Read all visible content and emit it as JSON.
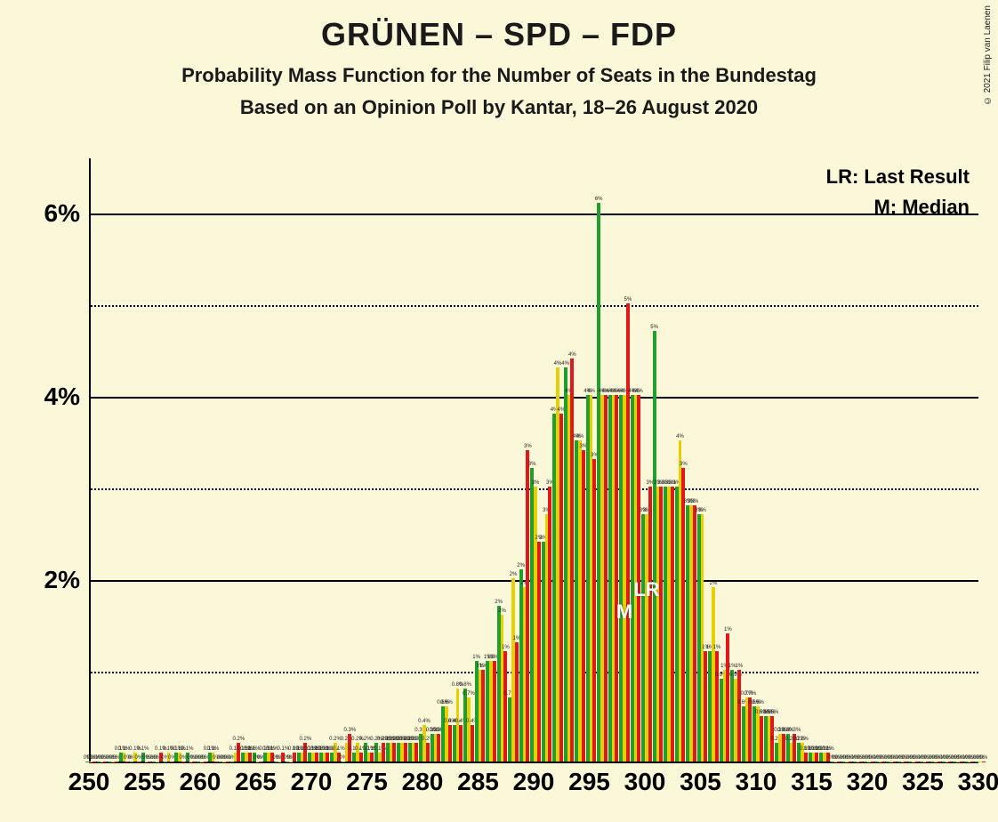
{
  "title": "GRÜNEN – SPD – FDP",
  "subtitle": "Probability Mass Function for the Number of Seats in the Bundestag",
  "subtitle2": "Based on an Opinion Poll by Kantar, 18–26 August 2020",
  "copyright": "© 2021 Filip van Laenen",
  "legend": {
    "lr": "LR: Last Result",
    "m": "M: Median"
  },
  "markers": {
    "lr": "LR",
    "m": "M",
    "lr_seat": 300,
    "m_seat": 298
  },
  "chart": {
    "type": "grouped-bar",
    "background_color": "#fbf7d9",
    "axis_color": "#000000",
    "grid_solid_color": "#000000",
    "grid_dotted_color": "#000000",
    "title_fontsize": 36,
    "subtitle_fontsize": 22,
    "ytick_fontsize": 28,
    "xtick_fontsize": 28,
    "legend_fontsize": 22,
    "marker_fontsize": 22,
    "y": {
      "min": 0,
      "max": 6.6,
      "major_ticks": [
        2,
        4,
        6
      ],
      "minor_ticks": [
        1,
        3,
        5
      ],
      "label_suffix": "%"
    },
    "x": {
      "min": 250,
      "max": 330,
      "tick_step": 5
    },
    "series_colors": {
      "g": "#1fa02c",
      "y": "#e8d000",
      "r": "#e01818"
    },
    "categories": [
      250,
      251,
      252,
      253,
      254,
      255,
      256,
      257,
      258,
      259,
      260,
      261,
      262,
      263,
      264,
      265,
      266,
      267,
      268,
      269,
      270,
      271,
      272,
      273,
      274,
      275,
      276,
      277,
      278,
      279,
      280,
      281,
      282,
      283,
      284,
      285,
      286,
      287,
      288,
      289,
      290,
      291,
      292,
      293,
      294,
      295,
      296,
      297,
      298,
      299,
      300,
      301,
      302,
      303,
      304,
      305,
      306,
      307,
      308,
      309,
      310,
      311,
      312,
      313,
      314,
      315,
      316,
      317,
      318,
      319,
      320,
      321,
      322,
      323,
      324,
      325,
      326,
      327,
      328,
      329,
      330
    ],
    "series": {
      "g": [
        0,
        0,
        0,
        0.1,
        0,
        0.1,
        0,
        0,
        0.1,
        0.1,
        0,
        0.1,
        0,
        0,
        0.1,
        0.1,
        0.1,
        0,
        0,
        0.1,
        0.1,
        0.1,
        0.1,
        0,
        0.1,
        0.2,
        0.2,
        0.2,
        0.2,
        0.2,
        0.3,
        0.3,
        0.6,
        0.4,
        0.8,
        1.1,
        1.1,
        1.7,
        0.7,
        2.1,
        3.2,
        2.4,
        3.8,
        4.3,
        3.5,
        4.0,
        6.1,
        4.0,
        4.0,
        4.0,
        2.7,
        4.7,
        3.0,
        3.0,
        2.8,
        2.7,
        1.2,
        0.9,
        1.0,
        0.6,
        0.6,
        0.5,
        0.2,
        0.3,
        0.2,
        0.1,
        0.1,
        0,
        0,
        0,
        0,
        0,
        0,
        0,
        0,
        0,
        0,
        0,
        0,
        0,
        0
      ],
      "y": [
        0,
        0,
        0,
        0.1,
        0.1,
        0,
        0,
        0.1,
        0.1,
        0,
        0,
        0.1,
        0,
        0.1,
        0.1,
        0,
        0.1,
        0,
        0,
        0.1,
        0.1,
        0.1,
        0.2,
        0.2,
        0.2,
        0.1,
        0.1,
        0.2,
        0.2,
        0.2,
        0.4,
        0.3,
        0.6,
        0.8,
        0.7,
        1.0,
        1.1,
        1.6,
        2.0,
        1.9,
        3.0,
        2.7,
        4.3,
        4.0,
        3.5,
        4.0,
        4.0,
        4.0,
        4.0,
        4.0,
        2.7,
        3.0,
        3.0,
        3.5,
        2.8,
        2.7,
        1.9,
        1.0,
        0.9,
        0.7,
        0.6,
        0.5,
        0.3,
        0.2,
        0.2,
        0.1,
        0.1,
        0,
        0,
        0,
        0,
        0,
        0,
        0,
        0,
        0,
        0,
        0,
        0,
        0,
        0
      ],
      "r": [
        0,
        0,
        0,
        0,
        0,
        0,
        0.1,
        0,
        0,
        0,
        0,
        0,
        0,
        0.2,
        0.1,
        0,
        0.1,
        0.1,
        0.1,
        0.2,
        0.1,
        0.1,
        0.1,
        0.3,
        0.1,
        0.1,
        0.2,
        0.2,
        0.2,
        0.2,
        0.2,
        0.3,
        0.4,
        0.4,
        0.4,
        1.0,
        1.1,
        1.2,
        1.3,
        3.4,
        2.4,
        3.0,
        3.8,
        4.4,
        3.4,
        3.3,
        4.0,
        4.0,
        5.0,
        4.0,
        3.0,
        3.0,
        3.0,
        3.2,
        2.8,
        1.2,
        1.2,
        1.4,
        1.0,
        0.7,
        0.5,
        0.5,
        0.3,
        0.3,
        0.1,
        0.1,
        0.1,
        0,
        0,
        0,
        0,
        0,
        0,
        0,
        0,
        0,
        0,
        0,
        0,
        0,
        0
      ]
    }
  }
}
